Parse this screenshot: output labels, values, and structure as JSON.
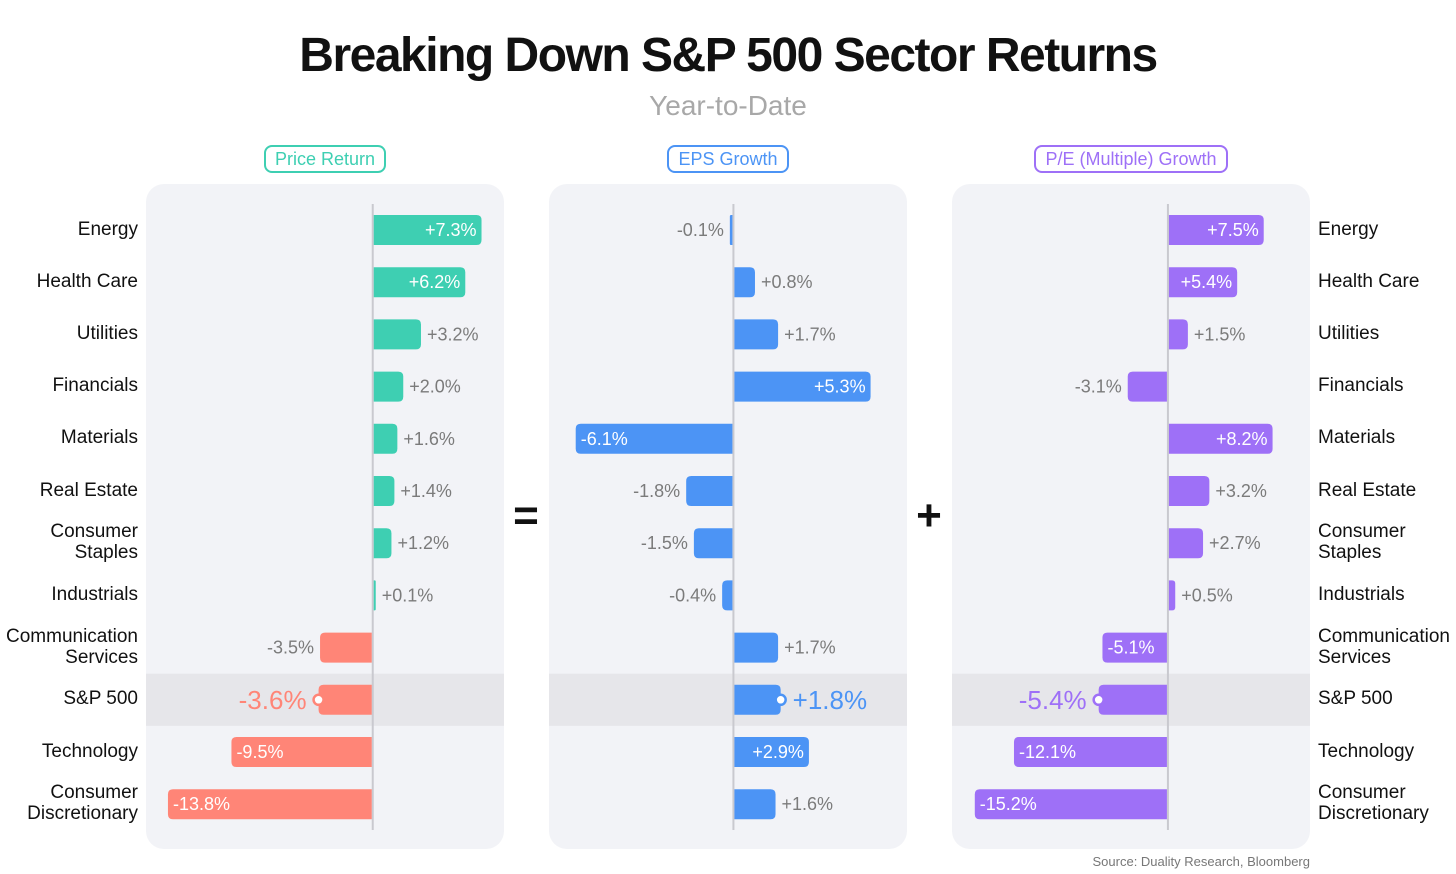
{
  "title": "Breaking Down S&P 500 Sector Returns",
  "subtitle": "Year-to-Date",
  "operators": {
    "equals": "=",
    "plus": "+"
  },
  "source": "Source: Duality Research, Bloomberg",
  "categories": [
    {
      "lines": [
        "Energy"
      ]
    },
    {
      "lines": [
        "Health Care"
      ]
    },
    {
      "lines": [
        "Utilities"
      ]
    },
    {
      "lines": [
        "Financials"
      ]
    },
    {
      "lines": [
        "Materials"
      ]
    },
    {
      "lines": [
        "Real Estate"
      ]
    },
    {
      "lines": [
        "Consumer",
        "Staples"
      ]
    },
    {
      "lines": [
        "Industrials"
      ]
    },
    {
      "lines": [
        "Communication",
        "Services"
      ]
    },
    {
      "lines": [
        "S&P 500"
      ]
    },
    {
      "lines": [
        "Technology"
      ]
    },
    {
      "lines": [
        "Consumer",
        "Discretionary"
      ]
    }
  ],
  "colors": {
    "price_positive": "#3ecfb2",
    "price_negative": "#ff8577",
    "eps": "#4c94f5",
    "pe": "#9e70f7",
    "panel_bg": "#f2f3f7",
    "highlight_row": "#e6e6ea",
    "axis": "#c9c9cf",
    "outside_label": "#7b7b7b"
  },
  "chart_data": [
    {
      "type": "bar",
      "orientation": "horizontal",
      "title": "Price Return",
      "categories": [
        "Energy",
        "Health Care",
        "Utilities",
        "Financials",
        "Materials",
        "Real Estate",
        "Consumer Staples",
        "Industrials",
        "Communication Services",
        "S&P 500",
        "Technology",
        "Consumer Discretionary"
      ],
      "values": [
        7.3,
        6.2,
        3.2,
        2.0,
        1.6,
        1.4,
        1.2,
        0.1,
        -3.5,
        -3.6,
        -9.5,
        -13.8
      ],
      "labels": [
        "+7.3%",
        "+6.2%",
        "+3.2%",
        "+2.0%",
        "+1.6%",
        "+1.4%",
        "+1.2%",
        "+0.1%",
        "-3.5%",
        "-3.6%",
        "-9.5%",
        "-13.8%"
      ],
      "highlight": "S&P 500",
      "xlim": [
        -14,
        7.4
      ]
    },
    {
      "type": "bar",
      "orientation": "horizontal",
      "title": "EPS Growth",
      "categories": [
        "Energy",
        "Health Care",
        "Utilities",
        "Financials",
        "Materials",
        "Real Estate",
        "Consumer Staples",
        "Industrials",
        "Communication Services",
        "S&P 500",
        "Technology",
        "Consumer Discretionary"
      ],
      "values": [
        -0.1,
        0.8,
        1.7,
        5.3,
        -6.1,
        -1.8,
        -1.5,
        -0.4,
        1.7,
        1.8,
        2.9,
        1.6
      ],
      "labels": [
        "-0.1%",
        "+0.8%",
        "+1.7%",
        "+5.3%",
        "-6.1%",
        "-1.8%",
        "-1.5%",
        "-0.4%",
        "+1.7%",
        "+1.8%",
        "+2.9%",
        "+1.6%"
      ],
      "highlight": "S&P 500",
      "xlim": [
        -6.4,
        5.9
      ]
    },
    {
      "type": "bar",
      "orientation": "horizontal",
      "title": "P/E (Multiple) Growth",
      "categories": [
        "Energy",
        "Health Care",
        "Utilities",
        "Financials",
        "Materials",
        "Real Estate",
        "Consumer Staples",
        "Industrials",
        "Communication Services",
        "S&P 500",
        "Technology",
        "Consumer Discretionary"
      ],
      "values": [
        7.5,
        5.4,
        1.5,
        -3.1,
        8.2,
        3.2,
        2.7,
        0.5,
        -5.1,
        -5.4,
        -12.1,
        -15.2
      ],
      "labels": [
        "+7.5%",
        "+5.4%",
        "+1.5%",
        "-3.1%",
        "+8.2%",
        "+3.2%",
        "+2.7%",
        "+0.5%",
        "-5.1%",
        "-5.4%",
        "-12.1%",
        "-15.2%"
      ],
      "highlight": "S&P 500",
      "xlim": [
        -15.5,
        9.5
      ]
    }
  ]
}
